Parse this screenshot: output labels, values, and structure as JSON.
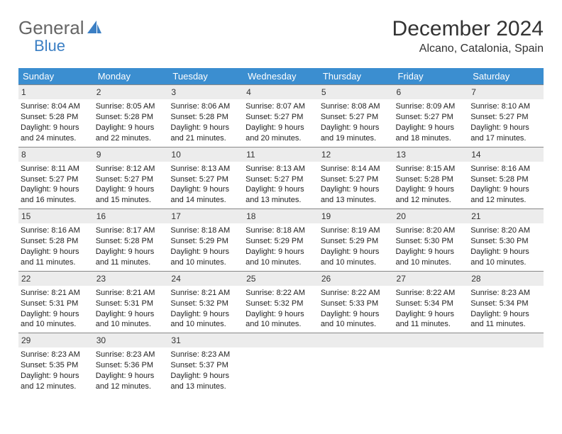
{
  "brand": {
    "part1": "General",
    "part2": "Blue"
  },
  "title": "December 2024",
  "location": "Alcano, Catalonia, Spain",
  "weekdays": [
    "Sunday",
    "Monday",
    "Tuesday",
    "Wednesday",
    "Thursday",
    "Friday",
    "Saturday"
  ],
  "header_bg": "#3b8ed0",
  "header_fg": "#ffffff",
  "daybar_bg": "#ececec",
  "daybar_border": "#888888",
  "logo_accent": "#3b7fc4",
  "days": [
    {
      "n": "1",
      "sunrise": "Sunrise: 8:04 AM",
      "sunset": "Sunset: 5:28 PM",
      "day1": "Daylight: 9 hours",
      "day2": "and 24 minutes."
    },
    {
      "n": "2",
      "sunrise": "Sunrise: 8:05 AM",
      "sunset": "Sunset: 5:28 PM",
      "day1": "Daylight: 9 hours",
      "day2": "and 22 minutes."
    },
    {
      "n": "3",
      "sunrise": "Sunrise: 8:06 AM",
      "sunset": "Sunset: 5:28 PM",
      "day1": "Daylight: 9 hours",
      "day2": "and 21 minutes."
    },
    {
      "n": "4",
      "sunrise": "Sunrise: 8:07 AM",
      "sunset": "Sunset: 5:27 PM",
      "day1": "Daylight: 9 hours",
      "day2": "and 20 minutes."
    },
    {
      "n": "5",
      "sunrise": "Sunrise: 8:08 AM",
      "sunset": "Sunset: 5:27 PM",
      "day1": "Daylight: 9 hours",
      "day2": "and 19 minutes."
    },
    {
      "n": "6",
      "sunrise": "Sunrise: 8:09 AM",
      "sunset": "Sunset: 5:27 PM",
      "day1": "Daylight: 9 hours",
      "day2": "and 18 minutes."
    },
    {
      "n": "7",
      "sunrise": "Sunrise: 8:10 AM",
      "sunset": "Sunset: 5:27 PM",
      "day1": "Daylight: 9 hours",
      "day2": "and 17 minutes."
    },
    {
      "n": "8",
      "sunrise": "Sunrise: 8:11 AM",
      "sunset": "Sunset: 5:27 PM",
      "day1": "Daylight: 9 hours",
      "day2": "and 16 minutes."
    },
    {
      "n": "9",
      "sunrise": "Sunrise: 8:12 AM",
      "sunset": "Sunset: 5:27 PM",
      "day1": "Daylight: 9 hours",
      "day2": "and 15 minutes."
    },
    {
      "n": "10",
      "sunrise": "Sunrise: 8:13 AM",
      "sunset": "Sunset: 5:27 PM",
      "day1": "Daylight: 9 hours",
      "day2": "and 14 minutes."
    },
    {
      "n": "11",
      "sunrise": "Sunrise: 8:13 AM",
      "sunset": "Sunset: 5:27 PM",
      "day1": "Daylight: 9 hours",
      "day2": "and 13 minutes."
    },
    {
      "n": "12",
      "sunrise": "Sunrise: 8:14 AM",
      "sunset": "Sunset: 5:27 PM",
      "day1": "Daylight: 9 hours",
      "day2": "and 13 minutes."
    },
    {
      "n": "13",
      "sunrise": "Sunrise: 8:15 AM",
      "sunset": "Sunset: 5:28 PM",
      "day1": "Daylight: 9 hours",
      "day2": "and 12 minutes."
    },
    {
      "n": "14",
      "sunrise": "Sunrise: 8:16 AM",
      "sunset": "Sunset: 5:28 PM",
      "day1": "Daylight: 9 hours",
      "day2": "and 12 minutes."
    },
    {
      "n": "15",
      "sunrise": "Sunrise: 8:16 AM",
      "sunset": "Sunset: 5:28 PM",
      "day1": "Daylight: 9 hours",
      "day2": "and 11 minutes."
    },
    {
      "n": "16",
      "sunrise": "Sunrise: 8:17 AM",
      "sunset": "Sunset: 5:28 PM",
      "day1": "Daylight: 9 hours",
      "day2": "and 11 minutes."
    },
    {
      "n": "17",
      "sunrise": "Sunrise: 8:18 AM",
      "sunset": "Sunset: 5:29 PM",
      "day1": "Daylight: 9 hours",
      "day2": "and 10 minutes."
    },
    {
      "n": "18",
      "sunrise": "Sunrise: 8:18 AM",
      "sunset": "Sunset: 5:29 PM",
      "day1": "Daylight: 9 hours",
      "day2": "and 10 minutes."
    },
    {
      "n": "19",
      "sunrise": "Sunrise: 8:19 AM",
      "sunset": "Sunset: 5:29 PM",
      "day1": "Daylight: 9 hours",
      "day2": "and 10 minutes."
    },
    {
      "n": "20",
      "sunrise": "Sunrise: 8:20 AM",
      "sunset": "Sunset: 5:30 PM",
      "day1": "Daylight: 9 hours",
      "day2": "and 10 minutes."
    },
    {
      "n": "21",
      "sunrise": "Sunrise: 8:20 AM",
      "sunset": "Sunset: 5:30 PM",
      "day1": "Daylight: 9 hours",
      "day2": "and 10 minutes."
    },
    {
      "n": "22",
      "sunrise": "Sunrise: 8:21 AM",
      "sunset": "Sunset: 5:31 PM",
      "day1": "Daylight: 9 hours",
      "day2": "and 10 minutes."
    },
    {
      "n": "23",
      "sunrise": "Sunrise: 8:21 AM",
      "sunset": "Sunset: 5:31 PM",
      "day1": "Daylight: 9 hours",
      "day2": "and 10 minutes."
    },
    {
      "n": "24",
      "sunrise": "Sunrise: 8:21 AM",
      "sunset": "Sunset: 5:32 PM",
      "day1": "Daylight: 9 hours",
      "day2": "and 10 minutes."
    },
    {
      "n": "25",
      "sunrise": "Sunrise: 8:22 AM",
      "sunset": "Sunset: 5:32 PM",
      "day1": "Daylight: 9 hours",
      "day2": "and 10 minutes."
    },
    {
      "n": "26",
      "sunrise": "Sunrise: 8:22 AM",
      "sunset": "Sunset: 5:33 PM",
      "day1": "Daylight: 9 hours",
      "day2": "and 10 minutes."
    },
    {
      "n": "27",
      "sunrise": "Sunrise: 8:22 AM",
      "sunset": "Sunset: 5:34 PM",
      "day1": "Daylight: 9 hours",
      "day2": "and 11 minutes."
    },
    {
      "n": "28",
      "sunrise": "Sunrise: 8:23 AM",
      "sunset": "Sunset: 5:34 PM",
      "day1": "Daylight: 9 hours",
      "day2": "and 11 minutes."
    },
    {
      "n": "29",
      "sunrise": "Sunrise: 8:23 AM",
      "sunset": "Sunset: 5:35 PM",
      "day1": "Daylight: 9 hours",
      "day2": "and 12 minutes."
    },
    {
      "n": "30",
      "sunrise": "Sunrise: 8:23 AM",
      "sunset": "Sunset: 5:36 PM",
      "day1": "Daylight: 9 hours",
      "day2": "and 12 minutes."
    },
    {
      "n": "31",
      "sunrise": "Sunrise: 8:23 AM",
      "sunset": "Sunset: 5:37 PM",
      "day1": "Daylight: 9 hours",
      "day2": "and 13 minutes."
    }
  ]
}
